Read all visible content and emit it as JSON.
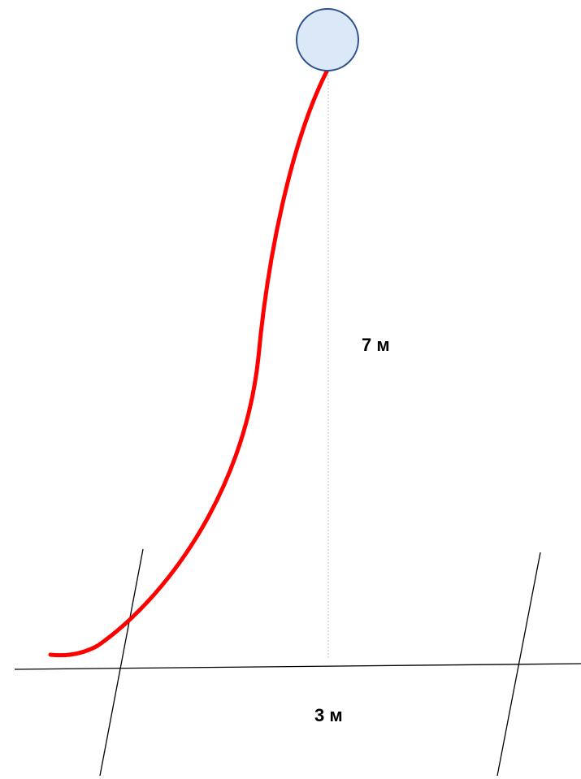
{
  "diagram": {
    "height_label": "7 м",
    "width_label": "3 м"
  },
  "colors": {
    "rope": "#ff0000",
    "ball_fill": "#dae8f7",
    "ball_stroke": "#2f528f",
    "line": "#000000",
    "guide": "#bfbfbf"
  }
}
